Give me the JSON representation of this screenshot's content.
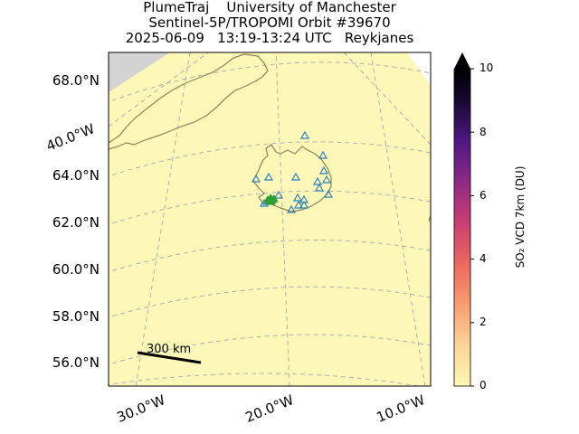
{
  "title": {
    "line1": "PlumeTraj    University of Manchester",
    "line2": "Sentinel-5P/TROPOMI Orbit #39670",
    "line3": "2025-06-09   13:19-13:24 UTC   Reykjanes"
  },
  "lat_labels": [
    "68.0°N",
    "64.0°N",
    "62.0°N",
    "60.0°N",
    "58.0°N",
    "56.0°N"
  ],
  "lon_labels": [
    "40.0°W",
    "30.0°W",
    "20.0°W",
    "10.0°W"
  ],
  "scale_bar": "300 km",
  "colorbar": {
    "label": "SO₂ VCD 7km (DU)",
    "ticks": [
      "0",
      "2",
      "4",
      "6",
      "8",
      "10"
    ],
    "min": 0,
    "max": 10,
    "colors": [
      "#fff6b3",
      "#fdd79a",
      "#f9a072",
      "#ec6a5e",
      "#c93d73",
      "#8a2886",
      "#4b1781",
      "#16082f",
      "#000004"
    ]
  },
  "colors": {
    "swath": "#fdf8b8",
    "land_outline": "#8a8458",
    "vents": "#2e7fb8",
    "source": "#2ca02c",
    "outside": "#d3d3d3",
    "grid": "#b0b0b0"
  }
}
